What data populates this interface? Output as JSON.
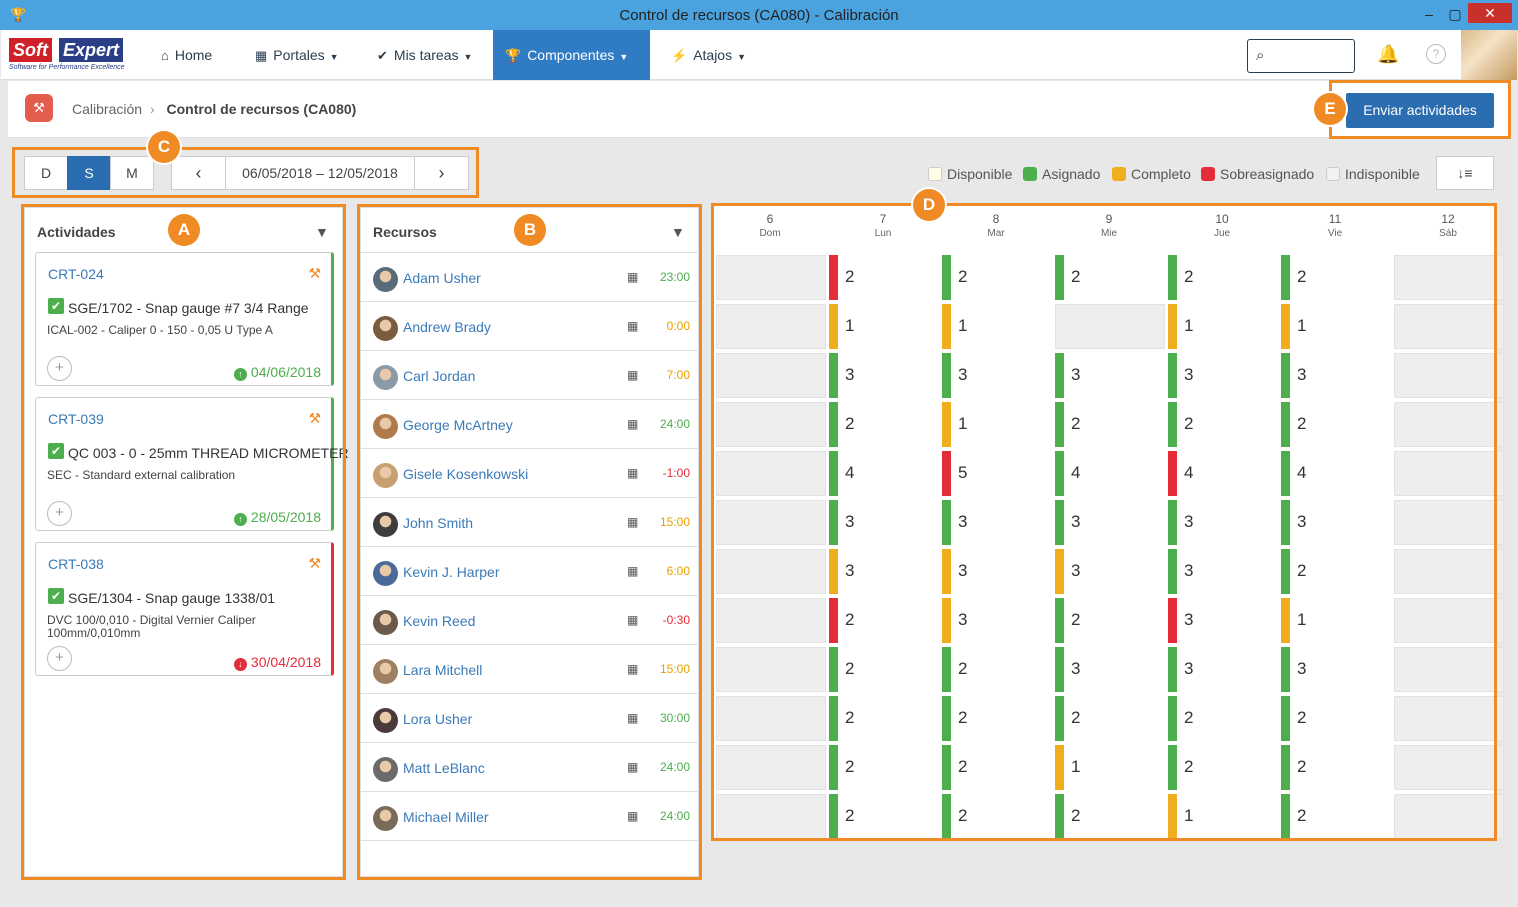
{
  "window": {
    "title": "Control de recursos (CA080) - Calibración"
  },
  "brand": {
    "soft": "Soft",
    "expert": "Expert",
    "tagline": "Software for Performance Excellence"
  },
  "nav": [
    {
      "label": "Home",
      "icon": "home-icon"
    },
    {
      "label": "Portales",
      "icon": "grid-icon"
    },
    {
      "label": "Mis tareas",
      "icon": "check-icon"
    },
    {
      "label": "Componentes",
      "icon": "trophy-icon"
    },
    {
      "label": "Atajos",
      "icon": "bolt-icon"
    }
  ],
  "breadcrumb": {
    "parent": "Calibración",
    "current": "Control de recursos (CA080)"
  },
  "send_button": "Enviar actividades",
  "view": {
    "d": "D",
    "s": "S",
    "m": "M",
    "range": "06/05/2018 – 12/05/2018",
    "selected": "S"
  },
  "legend": [
    {
      "label": "Disponible",
      "color": "#fffde8"
    },
    {
      "label": "Asignado",
      "color": "#4cae4c"
    },
    {
      "label": "Completo",
      "color": "#f0ad1e"
    },
    {
      "label": "Sobreasignado",
      "color": "#e52d3a"
    },
    {
      "label": "Indisponible",
      "color": "#f2f2f2"
    }
  ],
  "annotations": {
    "a": "A",
    "b": "B",
    "c": "C",
    "d": "D",
    "e": "E"
  },
  "activities": {
    "title": "Actividades",
    "cards": [
      {
        "code": "CRT-024",
        "title": "SGE/1702 - Snap gauge #7 3/4 Range",
        "desc": "ICAL-002 - Caliper 0 - 150 - 0,05 U Type A",
        "date": "04/06/2018",
        "status": "ok",
        "edge": "#4cae4c"
      },
      {
        "code": "CRT-039",
        "title": "QC 003 - 0 - 25mm THREAD MICROMETER",
        "desc": "SEC - Standard external calibration",
        "date": "28/05/2018",
        "status": "ok",
        "edge": "#4cae4c"
      },
      {
        "code": "CRT-038",
        "title": "SGE/1304 - Snap gauge 1338/01",
        "desc": "DVC 100/0,010 - Digital Vernier Caliper 100mm/0,010mm",
        "date": "30/04/2018",
        "status": "late",
        "edge": "#e52d3a"
      }
    ]
  },
  "resources": {
    "title": "Recursos",
    "rows": [
      {
        "name": "Adam Usher",
        "hours": "23:00",
        "hcolor": "#4cae4c"
      },
      {
        "name": "Andrew Brady",
        "hours": "0:00",
        "hcolor": "#e8a000"
      },
      {
        "name": "Carl Jordan",
        "hours": "7:00",
        "hcolor": "#e8a000"
      },
      {
        "name": "George McArtney",
        "hours": "24:00",
        "hcolor": "#4cae4c"
      },
      {
        "name": "Gisele Kosenkowski",
        "hours": "-1:00",
        "hcolor": "#e52d3a"
      },
      {
        "name": "John Smith",
        "hours": "15:00",
        "hcolor": "#e8a000"
      },
      {
        "name": "Kevin J. Harper",
        "hours": "6:00",
        "hcolor": "#e8a000"
      },
      {
        "name": "Kevin Reed",
        "hours": "-0:30",
        "hcolor": "#e52d3a"
      },
      {
        "name": "Lara Mitchell",
        "hours": "15:00",
        "hcolor": "#e8a000"
      },
      {
        "name": "Lora Usher",
        "hours": "30:00",
        "hcolor": "#4cae4c"
      },
      {
        "name": "Matt LeBlanc",
        "hours": "24:00",
        "hcolor": "#4cae4c"
      },
      {
        "name": "Michael Miller",
        "hours": "24:00",
        "hcolor": "#4cae4c"
      }
    ]
  },
  "days": [
    {
      "num": "6",
      "name": "Dom"
    },
    {
      "num": "7",
      "name": "Lun"
    },
    {
      "num": "8",
      "name": "Mar"
    },
    {
      "num": "9",
      "mame": "",
      "name": "Mie"
    },
    {
      "num": "10",
      "name": "Jue"
    },
    {
      "num": "11",
      "name": "Vie"
    },
    {
      "num": "12",
      "name": "Sáb"
    }
  ],
  "schedule": [
    [
      null,
      [
        "2",
        "r"
      ],
      [
        "2",
        "g"
      ],
      [
        "2",
        "g"
      ],
      [
        "2",
        "g"
      ],
      [
        "2",
        "g"
      ],
      null
    ],
    [
      null,
      [
        "1",
        "y"
      ],
      [
        "1",
        "y"
      ],
      null,
      [
        "1",
        "y"
      ],
      [
        "1",
        "y"
      ],
      null
    ],
    [
      null,
      [
        "3",
        "g"
      ],
      [
        "3",
        "g"
      ],
      [
        "3",
        "g"
      ],
      [
        "3",
        "g"
      ],
      [
        "3",
        "g"
      ],
      null
    ],
    [
      null,
      [
        "2",
        "g"
      ],
      [
        "1",
        "y"
      ],
      [
        "2",
        "g"
      ],
      [
        "2",
        "g"
      ],
      [
        "2",
        "g"
      ],
      null
    ],
    [
      null,
      [
        "4",
        "g"
      ],
      [
        "5",
        "r"
      ],
      [
        "4",
        "g"
      ],
      [
        "4",
        "r"
      ],
      [
        "4",
        "g"
      ],
      null
    ],
    [
      null,
      [
        "3",
        "g"
      ],
      [
        "3",
        "g"
      ],
      [
        "3",
        "g"
      ],
      [
        "3",
        "g"
      ],
      [
        "3",
        "g"
      ],
      null
    ],
    [
      null,
      [
        "3",
        "y"
      ],
      [
        "3",
        "y"
      ],
      [
        "3",
        "y"
      ],
      [
        "3",
        "g"
      ],
      [
        "2",
        "g"
      ],
      null
    ],
    [
      null,
      [
        "2",
        "r"
      ],
      [
        "3",
        "y"
      ],
      [
        "2",
        "g"
      ],
      [
        "3",
        "r"
      ],
      [
        "1",
        "y"
      ],
      null
    ],
    [
      null,
      [
        "2",
        "g"
      ],
      [
        "2",
        "g"
      ],
      [
        "3",
        "g"
      ],
      [
        "3",
        "g"
      ],
      [
        "3",
        "g"
      ],
      null
    ],
    [
      null,
      [
        "2",
        "g"
      ],
      [
        "2",
        "g"
      ],
      [
        "2",
        "g"
      ],
      [
        "2",
        "g"
      ],
      [
        "2",
        "g"
      ],
      null
    ],
    [
      null,
      [
        "2",
        "g"
      ],
      [
        "2",
        "g"
      ],
      [
        "1",
        "y"
      ],
      [
        "2",
        "g"
      ],
      [
        "2",
        "g"
      ],
      null
    ],
    [
      null,
      [
        "2",
        "g"
      ],
      [
        "2",
        "g"
      ],
      [
        "2",
        "g"
      ],
      [
        "1",
        "y"
      ],
      [
        "2",
        "g"
      ],
      null
    ]
  ],
  "colors": {
    "g": "#4cae4c",
    "y": "#f0ad1e",
    "r": "#e52d3a",
    "accent": "#2a6db0",
    "annotation": "#f08a24"
  }
}
